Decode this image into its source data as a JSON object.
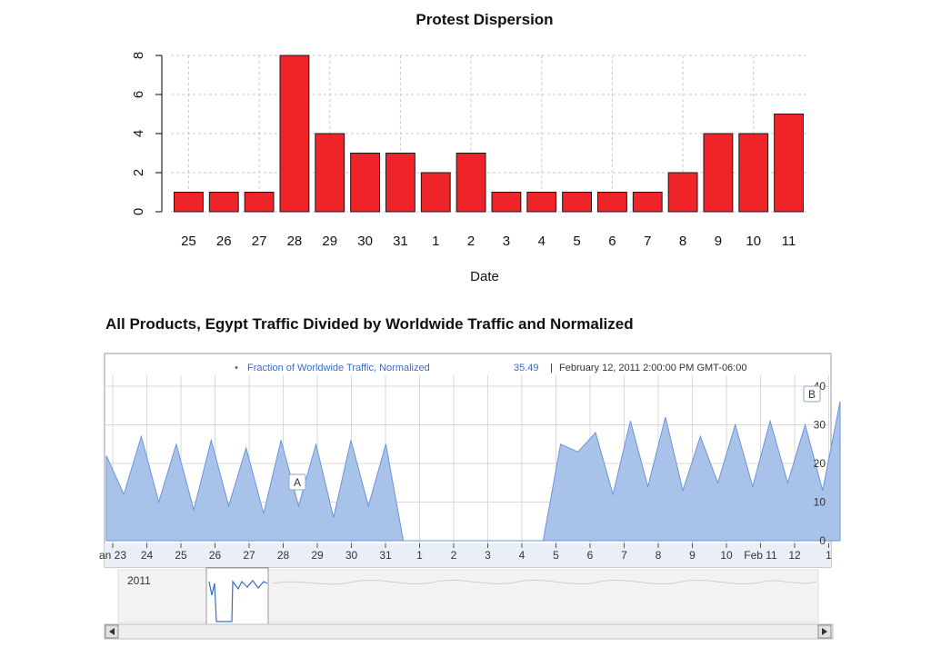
{
  "chart_data": [
    {
      "type": "bar",
      "title": "Protest Dispersion",
      "xlabel": "Date",
      "ylabel": "",
      "categories": [
        "25",
        "26",
        "27",
        "28",
        "29",
        "30",
        "31",
        "1",
        "2",
        "3",
        "4",
        "5",
        "6",
        "7",
        "8",
        "9",
        "10",
        "11"
      ],
      "values": [
        1,
        1,
        1,
        8,
        4,
        3,
        3,
        2,
        3,
        1,
        1,
        1,
        1,
        1,
        2,
        4,
        4,
        5
      ],
      "ylim": [
        0,
        8
      ],
      "yticks": [
        "0",
        "2",
        "4",
        "6",
        "8"
      ],
      "grid": true
    },
    {
      "type": "area",
      "title": "All Products, Egypt Traffic Divided by Worldwide Traffic and Normalized",
      "legend": {
        "bullet": "•",
        "label": "Fraction of Worldwide Traffic, Normalized",
        "value": "35.49",
        "separator": "|",
        "timestamp": "February 12, 2011 2:00:00 PM GMT-06:00"
      },
      "x_ticks": [
        "an 23",
        "24",
        "25",
        "26",
        "27",
        "28",
        "29",
        "30",
        "31",
        "1",
        "2",
        "3",
        "4",
        "5",
        "6",
        "7",
        "8",
        "9",
        "10",
        "Feb 11",
        "12",
        "1"
      ],
      "y_ticks": [
        "0",
        "10",
        "20",
        "30",
        "40"
      ],
      "ylim": [
        0,
        40
      ],
      "series": [
        {
          "x": [
            0,
            0.5,
            1,
            1.5,
            2,
            2.5,
            3,
            3.5,
            4,
            4.5,
            5,
            5.5,
            6,
            6.5,
            7,
            7.5,
            8,
            8.5,
            9,
            9.5,
            10,
            10.5,
            11,
            11.5,
            12,
            12.5,
            13,
            13.5,
            14,
            14.5,
            15,
            15.5,
            16,
            16.5,
            17,
            17.5,
            18,
            18.5,
            19,
            19.5,
            20,
            20.5,
            21
          ],
          "y": [
            22,
            12,
            27,
            10,
            25,
            8,
            26,
            9,
            24,
            7,
            26,
            9,
            25,
            6,
            26,
            9,
            25,
            0,
            0,
            0,
            0,
            0,
            0,
            0,
            0,
            0,
            25,
            23,
            28,
            12,
            31,
            14,
            32,
            13,
            27,
            15,
            30,
            14,
            31,
            15,
            30,
            13,
            36
          ]
        }
      ],
      "markers": [
        {
          "label": "A"
        },
        {
          "label": "B"
        }
      ],
      "overview": {
        "year_label": "2011"
      },
      "grid": true
    }
  ]
}
